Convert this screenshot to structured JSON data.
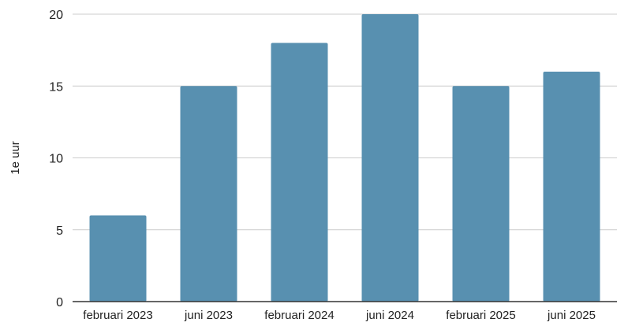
{
  "chart_data": {
    "type": "bar",
    "categories": [
      "februari 2023",
      "juni 2023",
      "februari 2024",
      "juni 2024",
      "februari 2025",
      "juni 2025"
    ],
    "values": [
      6,
      15,
      18,
      20,
      15,
      16
    ],
    "title": "",
    "xlabel": "",
    "ylabel": "1e uur",
    "ylim": [
      0,
      20
    ],
    "yticks": [
      0,
      5,
      10,
      15,
      20
    ],
    "grid": true,
    "legend": "none",
    "bar_color": "#5890B0"
  }
}
